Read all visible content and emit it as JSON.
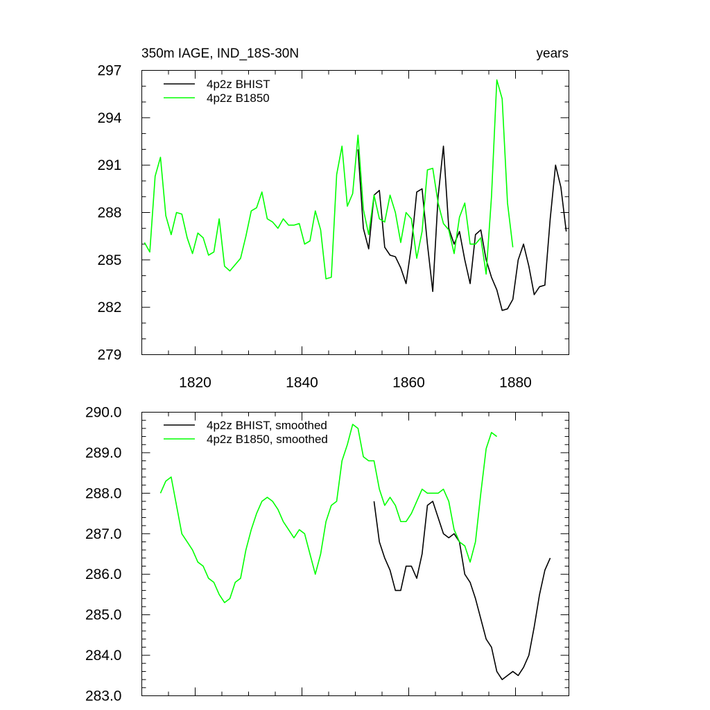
{
  "chart_data": [
    {
      "type": "line",
      "title_left": "350m IAGE, IND_18S-30N",
      "title_right": "years",
      "xlim": [
        1810,
        1890
      ],
      "ylim": [
        279,
        297
      ],
      "x_tick_labels": [
        {
          "value": 1820,
          "label": "1820"
        },
        {
          "value": 1840,
          "label": "1840"
        },
        {
          "value": 1860,
          "label": "1860"
        },
        {
          "value": 1880,
          "label": "1880"
        }
      ],
      "y_tick_labels": [
        {
          "value": 297,
          "label": "297"
        },
        {
          "value": 294,
          "label": "294"
        },
        {
          "value": 291,
          "label": "291"
        },
        {
          "value": 288,
          "label": "288"
        },
        {
          "value": 285,
          "label": "285"
        },
        {
          "value": 282,
          "label": "282"
        },
        {
          "value": 279,
          "label": "279"
        }
      ],
      "legend_position": "top-left",
      "series": [
        {
          "name": "4p2z BHIST",
          "color": "#000000",
          "x": [
            1850.5,
            1851.5,
            1852.5,
            1853.5,
            1854.5,
            1855.5,
            1856.5,
            1857.5,
            1858.5,
            1859.5,
            1860.5,
            1861.5,
            1862.5,
            1863.5,
            1864.5,
            1865.5,
            1866.5,
            1867.5,
            1868.5,
            1869.5,
            1870.5,
            1871.5,
            1872.5,
            1873.5,
            1874.5,
            1875.5,
            1876.5,
            1877.5,
            1878.5,
            1879.5,
            1880.5,
            1881.5,
            1882.5,
            1883.5,
            1884.5,
            1885.5,
            1886.5,
            1887.5,
            1888.5,
            1889.5
          ],
          "y": [
            292.0,
            287.0,
            285.7,
            289.1,
            289.4,
            285.8,
            285.3,
            285.2,
            284.5,
            283.5,
            285.9,
            289.3,
            289.5,
            286.0,
            283.0,
            289.0,
            292.2,
            287.0,
            286.0,
            286.8,
            285.0,
            283.5,
            286.6,
            286.9,
            285.0,
            283.9,
            283.1,
            281.8,
            281.9,
            282.5,
            285.0,
            286.0,
            284.6,
            282.8,
            283.3,
            283.4,
            287.6,
            291.0,
            289.6,
            286.8
          ]
        },
        {
          "name": "4p2z B1850",
          "color": "#00ff00",
          "x": [
            1810.5,
            1811.5,
            1812.5,
            1813.5,
            1814.5,
            1815.5,
            1816.5,
            1817.5,
            1818.5,
            1819.5,
            1820.5,
            1821.5,
            1822.5,
            1823.5,
            1824.5,
            1825.5,
            1826.5,
            1827.5,
            1828.5,
            1829.5,
            1830.5,
            1831.5,
            1832.5,
            1833.5,
            1834.5,
            1835.5,
            1836.5,
            1837.5,
            1838.5,
            1839.5,
            1840.5,
            1841.5,
            1842.5,
            1843.5,
            1844.5,
            1845.5,
            1846.5,
            1847.5,
            1848.5,
            1849.5,
            1850.5,
            1851.5,
            1852.5,
            1853.5,
            1854.5,
            1855.5,
            1856.5,
            1857.5,
            1858.5,
            1859.5,
            1860.5,
            1861.5,
            1862.5,
            1863.5,
            1864.5,
            1865.5,
            1866.5,
            1867.5,
            1868.5,
            1869.5,
            1870.5,
            1871.5,
            1872.5,
            1873.5,
            1874.5,
            1875.5,
            1876.5,
            1877.5,
            1878.5,
            1879.5
          ],
          "y": [
            286.1,
            285.5,
            290.3,
            291.5,
            287.8,
            286.6,
            288.0,
            287.9,
            286.4,
            285.4,
            286.7,
            286.4,
            285.3,
            285.5,
            287.6,
            284.6,
            284.3,
            284.7,
            285.1,
            286.5,
            288.1,
            288.3,
            289.3,
            287.6,
            287.4,
            287.0,
            287.6,
            287.2,
            287.2,
            287.3,
            286.0,
            286.2,
            288.1,
            286.9,
            283.8,
            283.9,
            290.4,
            292.2,
            288.4,
            289.2,
            292.9,
            288.2,
            286.6,
            289.1,
            287.6,
            287.4,
            289.1,
            288.0,
            286.1,
            288.0,
            287.6,
            285.1,
            286.8,
            290.7,
            290.8,
            288.6,
            287.3,
            286.9,
            285.4,
            287.7,
            288.6,
            286.0,
            286.0,
            286.4,
            284.1,
            289.0,
            296.4,
            295.2,
            288.6,
            285.8
          ]
        }
      ]
    },
    {
      "type": "line",
      "xlim": [
        1810,
        1890
      ],
      "ylim": [
        283.0,
        290.0
      ],
      "x_tick_labels": [],
      "y_tick_labels": [
        {
          "value": 290.0,
          "label": "290.0"
        },
        {
          "value": 289.0,
          "label": "289.0"
        },
        {
          "value": 288.0,
          "label": "288.0"
        },
        {
          "value": 287.0,
          "label": "287.0"
        },
        {
          "value": 286.0,
          "label": "286.0"
        },
        {
          "value": 285.0,
          "label": "285.0"
        },
        {
          "value": 284.0,
          "label": "284.0"
        },
        {
          "value": 283.0,
          "label": "283.0"
        }
      ],
      "legend_position": "top-left",
      "series": [
        {
          "name": "4p2z BHIST, smoothed",
          "color": "#000000",
          "x": [
            1853.5,
            1854.5,
            1855.5,
            1856.5,
            1857.5,
            1858.5,
            1859.5,
            1860.5,
            1861.5,
            1862.5,
            1863.5,
            1864.5,
            1865.5,
            1866.5,
            1867.5,
            1868.5,
            1869.5,
            1870.5,
            1871.5,
            1872.5,
            1873.5,
            1874.5,
            1875.5,
            1876.5,
            1877.5,
            1878.5,
            1879.5,
            1880.5,
            1881.5,
            1882.5,
            1883.5,
            1884.5,
            1885.5,
            1886.5
          ],
          "y": [
            287.8,
            286.8,
            286.4,
            286.1,
            285.6,
            285.6,
            286.2,
            286.2,
            285.9,
            286.5,
            287.7,
            287.8,
            287.4,
            287.0,
            286.9,
            287.0,
            286.8,
            286.0,
            285.8,
            285.4,
            284.9,
            284.4,
            284.2,
            283.6,
            283.4,
            283.5,
            283.6,
            283.5,
            283.7,
            284.0,
            284.7,
            285.5,
            286.1,
            286.4
          ]
        },
        {
          "name": "4p2z B1850, smoothed",
          "color": "#00ff00",
          "x": [
            1813.5,
            1814.5,
            1815.5,
            1816.5,
            1817.5,
            1818.5,
            1819.5,
            1820.5,
            1821.5,
            1822.5,
            1823.5,
            1824.5,
            1825.5,
            1826.5,
            1827.5,
            1828.5,
            1829.5,
            1830.5,
            1831.5,
            1832.5,
            1833.5,
            1834.5,
            1835.5,
            1836.5,
            1837.5,
            1838.5,
            1839.5,
            1840.5,
            1841.5,
            1842.5,
            1843.5,
            1844.5,
            1845.5,
            1846.5,
            1847.5,
            1848.5,
            1849.5,
            1850.5,
            1851.5,
            1852.5,
            1853.5,
            1854.5,
            1855.5,
            1856.5,
            1857.5,
            1858.5,
            1859.5,
            1860.5,
            1861.5,
            1862.5,
            1863.5,
            1864.5,
            1865.5,
            1866.5,
            1867.5,
            1868.5,
            1869.5,
            1870.5,
            1871.5,
            1872.5,
            1873.5,
            1874.5,
            1875.5,
            1876.5
          ],
          "y": [
            288.0,
            288.3,
            288.4,
            287.7,
            287.0,
            286.8,
            286.6,
            286.3,
            286.2,
            285.9,
            285.8,
            285.5,
            285.3,
            285.4,
            285.8,
            285.9,
            286.6,
            287.1,
            287.5,
            287.8,
            287.9,
            287.8,
            287.6,
            287.3,
            287.1,
            286.9,
            287.1,
            287.0,
            286.5,
            286.0,
            286.5,
            287.3,
            287.7,
            287.8,
            288.8,
            289.2,
            289.7,
            289.6,
            288.9,
            288.8,
            288.8,
            288.1,
            287.7,
            287.9,
            287.7,
            287.3,
            287.3,
            287.5,
            287.8,
            288.1,
            288.0,
            288.0,
            288.0,
            288.1,
            287.8,
            287.1,
            286.8,
            286.7,
            286.3,
            286.8,
            288.0,
            289.1,
            289.5,
            289.4
          ]
        }
      ]
    }
  ]
}
